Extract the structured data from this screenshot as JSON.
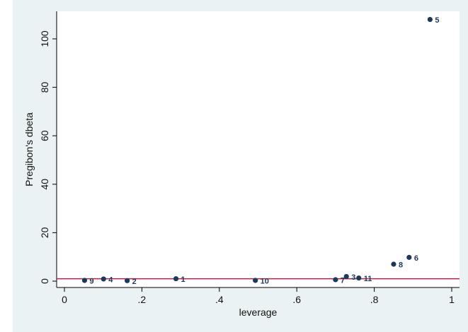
{
  "chart_data": {
    "type": "scatter",
    "title": "",
    "xlabel": "leverage",
    "ylabel": "Pregibon's dbeta",
    "xlim": [
      0,
      1
    ],
    "ylim": [
      0,
      110
    ],
    "x_ticks": [
      {
        "value": 0,
        "label": "0"
      },
      {
        "value": 0.2,
        "label": ".2"
      },
      {
        "value": 0.4,
        "label": ".4"
      },
      {
        "value": 0.6,
        "label": ".6"
      },
      {
        "value": 0.8,
        "label": ".8"
      },
      {
        "value": 1,
        "label": "1"
      }
    ],
    "y_ticks": [
      {
        "value": 0,
        "label": "0"
      },
      {
        "value": 20,
        "label": "20"
      },
      {
        "value": 40,
        "label": "40"
      },
      {
        "value": 60,
        "label": "60"
      },
      {
        "value": 80,
        "label": "80"
      },
      {
        "value": 100,
        "label": "100"
      }
    ],
    "reference_line": {
      "y": 1,
      "color": "#b0204a"
    },
    "grid": false,
    "marker_color": "#1b3a5b",
    "points": [
      {
        "label": "9",
        "x": 0.052,
        "y": 0.3
      },
      {
        "label": "4",
        "x": 0.101,
        "y": 0.9
      },
      {
        "label": "2",
        "x": 0.162,
        "y": 0.2
      },
      {
        "label": "1",
        "x": 0.288,
        "y": 1.0
      },
      {
        "label": "10",
        "x": 0.493,
        "y": 0.3
      },
      {
        "label": "7",
        "x": 0.7,
        "y": 0.6
      },
      {
        "label": "3",
        "x": 0.728,
        "y": 1.9
      },
      {
        "label": "11",
        "x": 0.76,
        "y": 1.3
      },
      {
        "label": "8",
        "x": 0.85,
        "y": 7.0
      },
      {
        "label": "6",
        "x": 0.89,
        "y": 9.8
      },
      {
        "label": "5",
        "x": 0.944,
        "y": 108.0
      }
    ]
  }
}
